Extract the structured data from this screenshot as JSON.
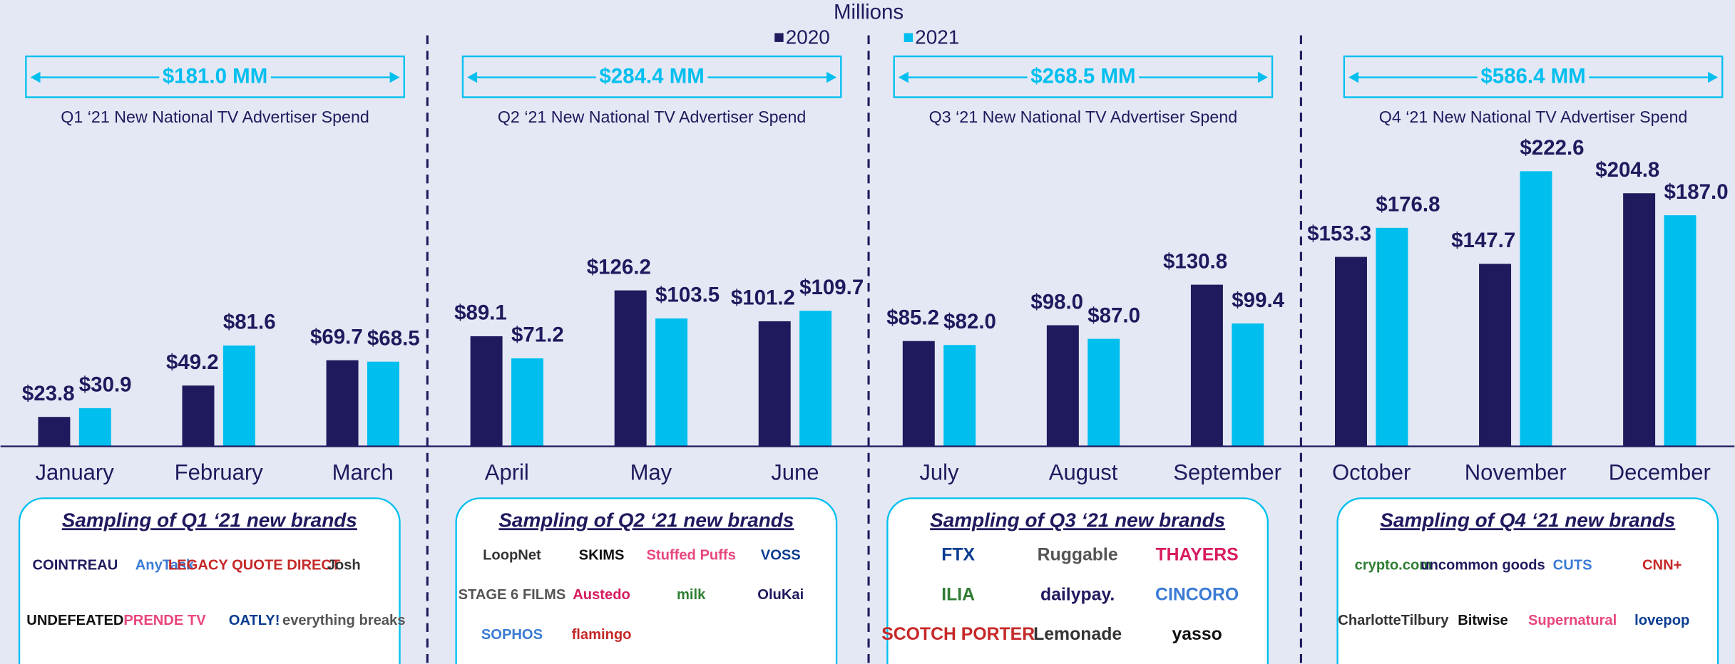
{
  "chart_data": {
    "type": "bar",
    "title": "Millions",
    "categories": [
      "January",
      "February",
      "March",
      "April",
      "May",
      "June",
      "July",
      "August",
      "September",
      "October",
      "November",
      "December"
    ],
    "series": [
      {
        "name": "2020",
        "color": "#1f1a5e",
        "values": [
          23.8,
          49.2,
          69.7,
          89.1,
          126.2,
          101.2,
          85.2,
          98.0,
          130.8,
          153.3,
          147.7,
          204.8
        ],
        "value_labels": [
          "$23.8",
          "$49.2",
          "$69.7",
          "$89.1",
          "$126.2",
          "$101.2",
          "$85.2",
          "$98.0",
          "$130.8",
          "$153.3",
          "$147.7",
          "$204.8"
        ]
      },
      {
        "name": "2021",
        "color": "#00bfef",
        "values": [
          30.9,
          81.6,
          68.5,
          71.2,
          103.5,
          109.7,
          82.0,
          87.0,
          99.4,
          176.8,
          222.6,
          187.0
        ],
        "value_labels": [
          "$30.9",
          "$81.6",
          "$68.5",
          "$71.2",
          "$103.5",
          "$109.7",
          "$82.0",
          "$87.0",
          "$99.4",
          "$176.8",
          "$222.6",
          "$187.0"
        ]
      }
    ],
    "quarters": [
      {
        "total": "$181.0 MM",
        "caption": "Q1 ‘21 New National TV Advertiser Spend",
        "sampling": "Sampling of Q1 ‘21 new brands",
        "brands": [
          "COINTREAU",
          "AnyTask",
          "LEGACY QUOTE DIRECT",
          "Josh",
          "UNDEFEATED",
          "PRENDE TV",
          "OATLY!",
          "everything breaks"
        ]
      },
      {
        "total": "$284.4 MM",
        "caption": "Q2 ‘21 New National TV Advertiser Spend",
        "sampling": "Sampling of Q2 ‘21 new brands",
        "brands": [
          "LoopNet",
          "SKIMS",
          "Stuffed Puffs",
          "VOSS",
          "STAGE 6 FILMS",
          "Austedo",
          "milk",
          "OluKai",
          "SOPHOS",
          "flamingo"
        ]
      },
      {
        "total": "$268.5 MM",
        "caption": "Q3 ‘21 New National TV Advertiser Spend",
        "sampling": "Sampling of Q3 ‘21 new brands",
        "brands": [
          "FTX",
          "Ruggable",
          "THAYERS",
          "ILIA",
          "dailypay.",
          "CINCORO",
          "SCOTCH PORTER",
          "Lemonade",
          "yasso"
        ]
      },
      {
        "total": "$586.4 MM",
        "caption": "Q4 ‘21 New National TV Advertiser Spend",
        "sampling": "Sampling of Q4 ‘21 new brands",
        "brands": [
          "crypto.com",
          "uncommon goods",
          "CUTS",
          "CNN+",
          "CharlotteTilbury",
          "Bitwise",
          "Supernatural",
          "lovepop"
        ]
      }
    ]
  }
}
